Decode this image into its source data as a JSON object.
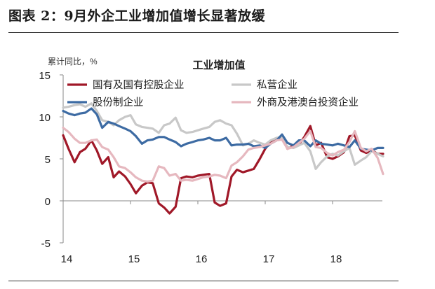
{
  "figure_title": "图表 2：9月外企工业增加值增长显著放缓",
  "chart_data": {
    "type": "line",
    "title": "工业增加值",
    "ylabel": "累计同比，%",
    "xlabel": "",
    "ylim": [
      -5,
      15
    ],
    "yticks": [
      -5,
      0,
      5,
      10,
      15
    ],
    "xlim": [
      2014,
      2019
    ],
    "xticks": [
      {
        "x": 2014,
        "label": "14"
      },
      {
        "x": 2015,
        "label": "15"
      },
      {
        "x": 2016,
        "label": "16"
      },
      {
        "x": 2017,
        "label": "17"
      },
      {
        "x": 2018,
        "label": "18"
      }
    ],
    "grid": false,
    "legend": "top, two columns",
    "series": [
      {
        "name": "国有及国有控股企业",
        "color": "#a01828",
        "width": 3.2,
        "points": [
          [
            2014.0,
            7.8
          ],
          [
            2014.08,
            6.2
          ],
          [
            2014.17,
            4.6
          ],
          [
            2014.25,
            5.8
          ],
          [
            2014.33,
            6.2
          ],
          [
            2014.42,
            7.2
          ],
          [
            2014.5,
            6.0
          ],
          [
            2014.58,
            4.4
          ],
          [
            2014.67,
            5.2
          ],
          [
            2014.75,
            2.8
          ],
          [
            2014.83,
            3.5
          ],
          [
            2014.92,
            2.9
          ],
          [
            2015.0,
            2.0
          ],
          [
            2015.08,
            0.9
          ],
          [
            2015.17,
            1.8
          ],
          [
            2015.25,
            2.2
          ],
          [
            2015.33,
            2.1
          ],
          [
            2015.42,
            -0.3
          ],
          [
            2015.5,
            -0.8
          ],
          [
            2015.58,
            -1.5
          ],
          [
            2015.67,
            -0.7
          ],
          [
            2015.75,
            2.7
          ],
          [
            2015.83,
            2.9
          ],
          [
            2015.92,
            2.8
          ],
          [
            2016.0,
            3.0
          ],
          [
            2016.08,
            3.1
          ],
          [
            2016.17,
            3.2
          ],
          [
            2016.25,
            -0.2
          ],
          [
            2016.33,
            -0.6
          ],
          [
            2016.42,
            -0.3
          ],
          [
            2016.5,
            2.9
          ],
          [
            2016.58,
            3.7
          ],
          [
            2016.67,
            3.4
          ],
          [
            2016.75,
            3.6
          ],
          [
            2016.83,
            3.8
          ],
          [
            2016.92,
            5.0
          ],
          [
            2017.0,
            6.2
          ],
          [
            2017.08,
            7.0
          ],
          [
            2017.17,
            7.3
          ],
          [
            2017.25,
            7.7
          ],
          [
            2017.33,
            6.2
          ],
          [
            2017.42,
            6.6
          ],
          [
            2017.5,
            6.7
          ],
          [
            2017.58,
            7.6
          ],
          [
            2017.67,
            8.9
          ],
          [
            2017.75,
            6.6
          ],
          [
            2017.83,
            6.9
          ],
          [
            2017.92,
            5.2
          ],
          [
            2018.0,
            5.0
          ],
          [
            2018.08,
            5.3
          ],
          [
            2018.17,
            5.8
          ],
          [
            2018.25,
            7.7
          ],
          [
            2018.33,
            7.8
          ],
          [
            2018.42,
            6.0
          ],
          [
            2018.5,
            5.7
          ],
          [
            2018.58,
            6.0
          ],
          [
            2018.67,
            5.6
          ],
          [
            2018.75,
            5.6
          ]
        ]
      },
      {
        "name": "私营企业",
        "color": "#c8c8c8",
        "width": 3.2,
        "points": [
          [
            2014.0,
            11.1
          ],
          [
            2014.08,
            11.2
          ],
          [
            2014.17,
            11.4
          ],
          [
            2014.25,
            11.5
          ],
          [
            2014.33,
            11.2
          ],
          [
            2014.42,
            11.6
          ],
          [
            2014.5,
            10.7
          ],
          [
            2014.58,
            9.6
          ],
          [
            2014.67,
            9.4
          ],
          [
            2014.75,
            9.0
          ],
          [
            2014.83,
            9.6
          ],
          [
            2014.92,
            10.0
          ],
          [
            2015.0,
            10.2
          ],
          [
            2015.08,
            9.1
          ],
          [
            2015.17,
            8.8
          ],
          [
            2015.25,
            8.7
          ],
          [
            2015.33,
            8.6
          ],
          [
            2015.42,
            8.1
          ],
          [
            2015.5,
            9.0
          ],
          [
            2015.58,
            9.2
          ],
          [
            2015.67,
            9.9
          ],
          [
            2015.75,
            8.4
          ],
          [
            2015.83,
            8.1
          ],
          [
            2015.92,
            8.2
          ],
          [
            2016.0,
            8.4
          ],
          [
            2016.08,
            8.6
          ],
          [
            2016.17,
            8.8
          ],
          [
            2016.25,
            9.4
          ],
          [
            2016.33,
            9.6
          ],
          [
            2016.42,
            9.2
          ],
          [
            2016.5,
            9.0
          ],
          [
            2016.58,
            8.0
          ],
          [
            2016.67,
            6.6
          ],
          [
            2016.75,
            6.8
          ],
          [
            2016.83,
            7.2
          ],
          [
            2016.92,
            6.9
          ],
          [
            2017.0,
            6.7
          ],
          [
            2017.08,
            7.2
          ],
          [
            2017.17,
            7.5
          ],
          [
            2017.25,
            7.6
          ],
          [
            2017.33,
            6.4
          ],
          [
            2017.42,
            6.3
          ],
          [
            2017.5,
            6.6
          ],
          [
            2017.58,
            6.9
          ],
          [
            2017.67,
            5.9
          ],
          [
            2017.75,
            3.8
          ],
          [
            2017.83,
            4.6
          ],
          [
            2017.92,
            5.3
          ],
          [
            2018.0,
            5.6
          ],
          [
            2018.08,
            5.4
          ],
          [
            2018.17,
            5.9
          ],
          [
            2018.25,
            6.3
          ],
          [
            2018.33,
            4.3
          ],
          [
            2018.42,
            4.8
          ],
          [
            2018.5,
            5.2
          ],
          [
            2018.58,
            5.9
          ],
          [
            2018.67,
            5.6
          ],
          [
            2018.75,
            5.3
          ]
        ]
      },
      {
        "name": "股份制企业",
        "color": "#3d6ba3",
        "width": 3.2,
        "points": [
          [
            2014.0,
            10.7
          ],
          [
            2014.08,
            10.4
          ],
          [
            2014.17,
            10.2
          ],
          [
            2014.25,
            10.4
          ],
          [
            2014.33,
            10.5
          ],
          [
            2014.42,
            11.0
          ],
          [
            2014.5,
            10.3
          ],
          [
            2014.58,
            8.7
          ],
          [
            2014.67,
            9.4
          ],
          [
            2014.75,
            9.2
          ],
          [
            2014.83,
            8.9
          ],
          [
            2014.92,
            8.6
          ],
          [
            2015.0,
            8.3
          ],
          [
            2015.08,
            7.7
          ],
          [
            2015.17,
            6.8
          ],
          [
            2015.25,
            7.2
          ],
          [
            2015.33,
            7.3
          ],
          [
            2015.42,
            7.6
          ],
          [
            2015.5,
            7.6
          ],
          [
            2015.58,
            7.3
          ],
          [
            2015.67,
            7.0
          ],
          [
            2015.75,
            6.5
          ],
          [
            2015.83,
            6.8
          ],
          [
            2015.92,
            7.0
          ],
          [
            2016.0,
            7.2
          ],
          [
            2016.08,
            7.3
          ],
          [
            2016.17,
            7.5
          ],
          [
            2016.25,
            7.2
          ],
          [
            2016.33,
            7.2
          ],
          [
            2016.42,
            7.5
          ],
          [
            2016.5,
            6.6
          ],
          [
            2016.58,
            6.7
          ],
          [
            2016.67,
            6.7
          ],
          [
            2016.75,
            6.8
          ],
          [
            2016.83,
            6.5
          ],
          [
            2016.92,
            6.6
          ],
          [
            2017.0,
            6.3
          ],
          [
            2017.08,
            6.8
          ],
          [
            2017.17,
            7.2
          ],
          [
            2017.25,
            7.9
          ],
          [
            2017.33,
            6.9
          ],
          [
            2017.42,
            6.6
          ],
          [
            2017.5,
            7.2
          ],
          [
            2017.58,
            7.2
          ],
          [
            2017.67,
            6.5
          ],
          [
            2017.75,
            7.2
          ],
          [
            2017.83,
            6.8
          ],
          [
            2017.92,
            6.7
          ],
          [
            2018.0,
            6.6
          ],
          [
            2018.08,
            6.8
          ],
          [
            2018.17,
            6.6
          ],
          [
            2018.25,
            6.4
          ],
          [
            2018.33,
            7.2
          ],
          [
            2018.42,
            6.2
          ],
          [
            2018.5,
            6.1
          ],
          [
            2018.58,
            6.0
          ],
          [
            2018.67,
            6.3
          ],
          [
            2018.75,
            6.3
          ]
        ]
      },
      {
        "name": "外商及港澳台投资企业",
        "color": "#e6b8bf",
        "width": 3.2,
        "points": [
          [
            2014.0,
            8.7
          ],
          [
            2014.08,
            8.2
          ],
          [
            2014.17,
            7.4
          ],
          [
            2014.25,
            6.9
          ],
          [
            2014.33,
            6.9
          ],
          [
            2014.42,
            7.2
          ],
          [
            2014.5,
            7.3
          ],
          [
            2014.58,
            6.4
          ],
          [
            2014.67,
            6.1
          ],
          [
            2014.75,
            5.2
          ],
          [
            2014.83,
            4.1
          ],
          [
            2014.92,
            3.9
          ],
          [
            2015.0,
            3.4
          ],
          [
            2015.08,
            2.8
          ],
          [
            2015.17,
            2.4
          ],
          [
            2015.25,
            2.3
          ],
          [
            2015.33,
            2.4
          ],
          [
            2015.42,
            4.1
          ],
          [
            2015.5,
            3.9
          ],
          [
            2015.58,
            3.0
          ],
          [
            2015.67,
            3.2
          ],
          [
            2015.75,
            2.4
          ],
          [
            2015.83,
            2.5
          ],
          [
            2015.92,
            2.4
          ],
          [
            2016.0,
            2.6
          ],
          [
            2016.08,
            2.8
          ],
          [
            2016.17,
            2.9
          ],
          [
            2016.25,
            3.1
          ],
          [
            2016.33,
            3.0
          ],
          [
            2016.42,
            2.7
          ],
          [
            2016.5,
            4.2
          ],
          [
            2016.58,
            4.6
          ],
          [
            2016.67,
            5.3
          ],
          [
            2016.75,
            6.1
          ],
          [
            2016.83,
            6.3
          ],
          [
            2016.92,
            6.4
          ],
          [
            2017.0,
            6.6
          ],
          [
            2017.08,
            6.8
          ],
          [
            2017.17,
            7.2
          ],
          [
            2017.25,
            7.3
          ],
          [
            2017.33,
            6.2
          ],
          [
            2017.42,
            6.4
          ],
          [
            2017.5,
            6.9
          ],
          [
            2017.58,
            7.4
          ],
          [
            2017.67,
            8.3
          ],
          [
            2017.75,
            6.4
          ],
          [
            2017.83,
            6.3
          ],
          [
            2017.92,
            5.7
          ],
          [
            2018.0,
            5.4
          ],
          [
            2018.08,
            5.8
          ],
          [
            2018.17,
            6.1
          ],
          [
            2018.25,
            7.0
          ],
          [
            2018.33,
            8.3
          ],
          [
            2018.42,
            6.3
          ],
          [
            2018.5,
            5.9
          ],
          [
            2018.58,
            6.2
          ],
          [
            2018.67,
            5.1
          ],
          [
            2018.75,
            3.2
          ]
        ]
      }
    ]
  }
}
